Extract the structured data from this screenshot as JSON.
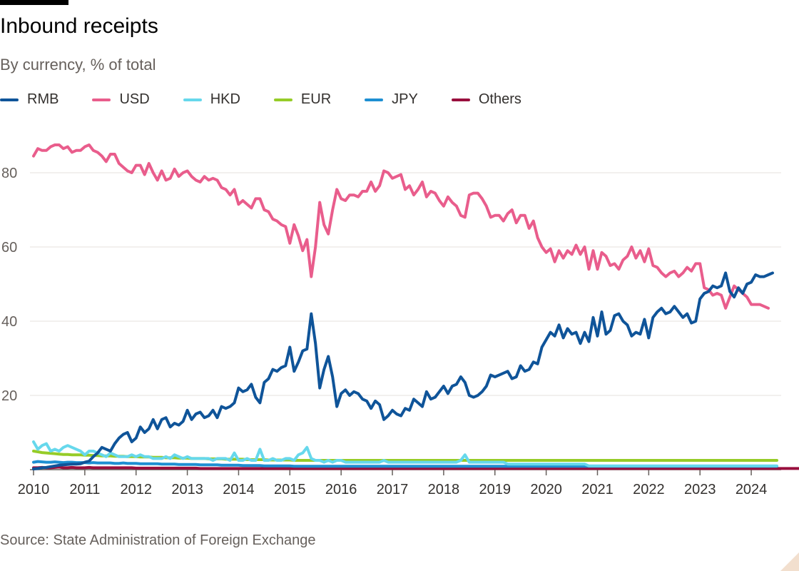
{
  "title": "Inbound receipts",
  "subtitle": "By currency, % of total",
  "source": "Source: State Administration of Foreign Exchange",
  "chart_data": {
    "type": "line",
    "title": "Inbound receipts",
    "subtitle": "By currency, % of total",
    "xlabel": "",
    "ylabel": "",
    "x_start": 2010.0,
    "x_step": 0.0833333,
    "xlim": [
      2010,
      2024.5
    ],
    "ylim": [
      0,
      90
    ],
    "yticks": [
      20,
      40,
      60,
      80
    ],
    "xticks": [
      "2010",
      "2011",
      "2012",
      "2013",
      "2014",
      "2015",
      "2016",
      "2017",
      "2018",
      "2019",
      "2020",
      "2021",
      "2022",
      "2023",
      "2024"
    ],
    "grid": "horizontal",
    "legend_position": "top-left",
    "series": [
      {
        "name": "RMB",
        "color": "#0f5499",
        "values": [
          0.2,
          0.3,
          0.5,
          0.6,
          0.8,
          1.0,
          1.2,
          1.3,
          1.4,
          1.5,
          1.5,
          1.6,
          2.0,
          2.3,
          3.5,
          4.5,
          6.0,
          5.5,
          5.0,
          7.0,
          8.5,
          9.5,
          10.0,
          7.5,
          8.5,
          11.5,
          10.0,
          11.0,
          13.5,
          11.0,
          13.5,
          14.0,
          11.5,
          12.5,
          12.0,
          13.0,
          16.0,
          13.5,
          15.0,
          15.5,
          14.0,
          14.5,
          16.0,
          14.0,
          17.0,
          16.5,
          17.0,
          18.0,
          22.0,
          21.0,
          21.5,
          23.0,
          19.5,
          18.0,
          23.5,
          24.5,
          27.0,
          26.5,
          27.5,
          28.0,
          33.0,
          26.5,
          29.0,
          32.0,
          32.5,
          42.0,
          34.0,
          22.0,
          27.0,
          30.5,
          25.0,
          17.0,
          20.5,
          21.5,
          20.0,
          21.0,
          20.5,
          19.0,
          18.5,
          16.5,
          18.5,
          17.5,
          13.5,
          14.5,
          16.0,
          15.0,
          14.5,
          16.5,
          16.0,
          19.0,
          18.0,
          17.0,
          21.0,
          19.0,
          19.5,
          21.0,
          22.5,
          20.5,
          22.5,
          23.0,
          25.0,
          23.5,
          20.0,
          19.5,
          20.0,
          21.0,
          22.5,
          25.5,
          25.0,
          25.5,
          26.0,
          26.5,
          24.5,
          25.0,
          28.0,
          26.5,
          27.0,
          29.0,
          28.5,
          33.0,
          35.0,
          37.0,
          36.0,
          39.0,
          35.5,
          38.0,
          36.5,
          37.0,
          34.0,
          37.0,
          34.5,
          41.0,
          36.0,
          42.5,
          36.5,
          37.5,
          41.5,
          42.0,
          40.0,
          39.0,
          36.0,
          37.0,
          36.5,
          40.5,
          35.5,
          41.0,
          42.5,
          43.5,
          42.0,
          42.5,
          44.0,
          42.5,
          41.0,
          42.0,
          39.5,
          40.0,
          46.0,
          47.5,
          48.0,
          49.5,
          49.0,
          49.5,
          53.0,
          48.0,
          46.5,
          49.0,
          47.5,
          50.0,
          50.5,
          52.5,
          52.0,
          52.0,
          52.5,
          53.0
        ]
      },
      {
        "name": "USD",
        "color": "#e95d8c",
        "values": [
          84.5,
          86.5,
          86.0,
          86.0,
          87.0,
          87.5,
          87.5,
          86.5,
          87.0,
          85.5,
          86.0,
          86.0,
          87.0,
          87.5,
          86.0,
          85.5,
          84.5,
          83.0,
          85.0,
          85.0,
          82.5,
          81.5,
          80.5,
          80.0,
          82.0,
          82.0,
          79.5,
          82.5,
          80.0,
          78.0,
          80.5,
          78.0,
          78.5,
          81.0,
          79.0,
          80.0,
          80.5,
          79.0,
          78.0,
          77.5,
          79.0,
          78.0,
          78.5,
          78.0,
          76.0,
          75.5,
          74.0,
          75.5,
          71.5,
          72.5,
          71.5,
          70.5,
          73.0,
          73.0,
          70.0,
          69.5,
          67.5,
          67.0,
          66.0,
          65.5,
          61.0,
          66.0,
          63.0,
          59.0,
          62.0,
          52.0,
          60.0,
          72.0,
          66.0,
          63.5,
          70.0,
          75.5,
          73.0,
          72.5,
          74.0,
          74.0,
          73.5,
          75.0,
          75.0,
          77.5,
          75.0,
          76.5,
          80.5,
          80.0,
          78.5,
          79.0,
          79.5,
          75.5,
          76.5,
          74.0,
          75.5,
          77.5,
          73.5,
          75.0,
          74.5,
          72.5,
          71.0,
          73.5,
          72.0,
          71.0,
          68.5,
          68.0,
          74.0,
          74.5,
          74.5,
          73.0,
          71.0,
          68.0,
          68.5,
          68.5,
          67.0,
          69.0,
          70.0,
          66.5,
          68.5,
          68.5,
          65.0,
          67.0,
          62.5,
          60.0,
          58.5,
          59.5,
          56.0,
          59.0,
          57.0,
          59.0,
          58.0,
          60.5,
          58.0,
          60.0,
          54.0,
          59.0,
          54.0,
          58.5,
          57.5,
          55.0,
          55.5,
          54.0,
          56.5,
          57.5,
          60.0,
          57.0,
          59.0,
          56.0,
          59.5,
          55.0,
          54.5,
          53.0,
          52.0,
          53.0,
          53.5,
          52.0,
          53.0,
          54.5,
          53.5,
          55.5,
          55.5,
          49.0,
          48.5,
          47.0,
          47.5,
          47.0,
          43.5,
          46.5,
          49.5,
          48.5,
          47.5,
          46.5,
          44.5,
          44.5,
          44.5,
          44.0,
          43.5
        ]
      },
      {
        "name": "HKD",
        "color": "#66d8ec",
        "values": [
          7.5,
          5.5,
          6.5,
          7.0,
          5.0,
          5.5,
          5.0,
          6.0,
          6.5,
          6.0,
          5.5,
          5.0,
          4.0,
          5.0,
          5.0,
          4.5,
          4.0,
          3.5,
          4.5,
          4.0,
          3.5,
          3.5,
          3.5,
          4.0,
          3.5,
          4.0,
          3.5,
          3.5,
          3.0,
          3.0,
          3.0,
          3.5,
          3.0,
          4.0,
          3.5,
          3.0,
          3.5,
          3.0,
          3.0,
          3.0,
          3.0,
          3.0,
          2.5,
          3.0,
          3.0,
          3.0,
          2.5,
          4.5,
          2.5,
          2.5,
          3.0,
          2.5,
          2.5,
          5.5,
          2.5,
          2.5,
          3.0,
          2.5,
          2.5,
          3.0,
          3.0,
          2.5,
          4.0,
          4.5,
          6.0,
          3.0,
          2.5,
          2.5,
          2.0,
          2.5,
          2.0,
          2.5,
          2.5,
          2.0,
          2.0,
          2.0,
          2.0,
          2.0,
          2.0,
          2.0,
          2.0,
          2.0,
          2.5,
          2.0,
          2.0,
          2.0,
          2.0,
          2.0,
          2.0,
          2.0,
          2.0,
          2.0,
          2.0,
          2.0,
          2.0,
          2.0,
          2.0,
          2.0,
          2.0,
          2.0,
          2.5,
          4.0,
          2.0,
          2.0,
          2.0,
          2.0,
          2.0,
          2.0,
          2.0,
          2.0,
          2.0,
          1.5,
          1.5,
          1.5,
          1.5,
          1.5,
          1.5,
          1.5,
          1.5,
          1.5,
          1.5,
          1.5,
          1.5,
          1.5,
          1.5,
          1.5,
          1.5,
          1.5,
          1.5,
          1.5,
          1.0,
          1.0,
          1.0,
          1.0,
          1.0,
          1.0,
          1.0,
          1.0,
          1.0,
          1.0,
          1.0,
          1.0,
          1.0,
          1.0,
          1.0,
          1.0,
          1.0,
          1.0,
          1.0,
          1.0,
          1.0,
          1.0,
          1.0,
          1.0,
          1.0,
          1.0,
          1.0,
          1.0,
          1.0,
          1.0,
          1.0,
          1.0,
          1.0,
          1.0,
          1.0,
          1.0,
          1.0,
          1.0,
          1.0,
          1.0,
          1.0,
          1.0,
          1.0,
          1.0,
          1.0
        ]
      },
      {
        "name": "EUR",
        "color": "#96cc28",
        "values": [
          5.0,
          4.8,
          4.6,
          4.5,
          4.4,
          4.3,
          4.2,
          4.1,
          4.1,
          4.0,
          4.0,
          4.0,
          3.9,
          3.9,
          3.8,
          3.8,
          3.7,
          3.7,
          3.7,
          3.6,
          3.6,
          3.6,
          3.5,
          3.5,
          3.5,
          3.4,
          3.4,
          3.4,
          3.3,
          3.3,
          3.3,
          3.2,
          3.2,
          3.2,
          3.1,
          3.1,
          3.1,
          3.0,
          3.0,
          3.0,
          3.0,
          2.9,
          2.9,
          2.9,
          2.9,
          2.8,
          2.8,
          2.8,
          2.8,
          2.8,
          2.7,
          2.7,
          2.7,
          2.7,
          2.7,
          2.6,
          2.6,
          2.6,
          2.6,
          2.6,
          2.6,
          2.5,
          2.5,
          2.5,
          2.5,
          2.5,
          2.5,
          2.5,
          2.5,
          2.5,
          2.5,
          2.5,
          2.5,
          2.5,
          2.5,
          2.5,
          2.5,
          2.5,
          2.5,
          2.5,
          2.5,
          2.5,
          2.5,
          2.5,
          2.5,
          2.5,
          2.5,
          2.5,
          2.5,
          2.5,
          2.5,
          2.5,
          2.5,
          2.5,
          2.5,
          2.5,
          2.5,
          2.5,
          2.5,
          2.5,
          2.5,
          2.5,
          2.5,
          2.5,
          2.5,
          2.5,
          2.5,
          2.5,
          2.5,
          2.5,
          2.5,
          2.5,
          2.5,
          2.5,
          2.5,
          2.5,
          2.5,
          2.5,
          2.5,
          2.5,
          2.5,
          2.5,
          2.5,
          2.5,
          2.5,
          2.5,
          2.5,
          2.5,
          2.5,
          2.5,
          2.5,
          2.5,
          2.5,
          2.5,
          2.5,
          2.5,
          2.5,
          2.5,
          2.5,
          2.5,
          2.5,
          2.5,
          2.5,
          2.5,
          2.5,
          2.5,
          2.5,
          2.5,
          2.5,
          2.5,
          2.5,
          2.5,
          2.5,
          2.5,
          2.5,
          2.5,
          2.5,
          2.5,
          2.5,
          2.5,
          2.5,
          2.5,
          2.5,
          2.5,
          2.5,
          2.5,
          2.5,
          2.5,
          2.5,
          2.5,
          2.5,
          2.5,
          2.5,
          2.5,
          2.5
        ]
      },
      {
        "name": "JPY",
        "color": "#1e8fd2",
        "values": [
          2.0,
          2.2,
          2.1,
          2.0,
          2.0,
          2.1,
          2.0,
          1.9,
          2.0,
          2.0,
          1.9,
          1.9,
          1.9,
          1.8,
          1.9,
          1.8,
          1.8,
          1.8,
          1.8,
          1.7,
          1.7,
          1.8,
          1.7,
          1.7,
          1.7,
          1.6,
          1.6,
          1.6,
          1.6,
          1.6,
          1.5,
          1.5,
          1.5,
          1.5,
          1.4,
          1.4,
          1.4,
          1.4,
          1.4,
          1.3,
          1.3,
          1.3,
          1.3,
          1.3,
          1.2,
          1.2,
          1.2,
          1.2,
          1.2,
          1.1,
          1.1,
          1.1,
          1.1,
          1.1,
          1.0,
          1.0,
          1.0,
          1.0,
          1.0,
          1.0,
          1.0,
          0.9,
          0.9,
          0.9,
          0.9,
          0.9,
          0.9,
          0.9,
          0.9,
          0.9,
          0.9,
          0.9,
          0.9,
          0.9,
          0.9,
          0.9,
          0.9,
          0.9,
          0.9,
          0.9,
          0.9,
          0.9,
          0.9,
          0.9,
          0.9,
          0.9,
          0.9,
          0.9,
          0.9,
          0.9,
          0.9,
          0.9,
          0.9,
          0.9,
          0.9,
          0.9,
          0.9,
          0.9,
          0.9,
          0.9,
          0.9,
          0.9,
          0.9,
          0.9,
          0.9,
          0.9,
          0.9,
          0.9,
          0.9,
          0.9,
          0.9,
          0.9,
          0.9,
          0.9,
          0.9,
          0.9,
          0.9,
          0.9,
          0.9,
          0.9,
          0.9,
          0.9,
          0.9,
          0.9,
          0.9,
          0.9,
          0.9,
          0.9,
          0.9,
          0.9,
          0.9,
          0.9,
          0.9,
          0.9,
          0.9,
          0.9,
          0.9,
          0.9,
          0.9,
          0.9,
          0.9,
          0.9,
          0.9,
          0.9,
          0.9,
          0.9,
          0.9,
          0.9,
          0.9,
          0.9,
          0.9,
          0.9,
          0.9,
          0.9,
          0.9,
          0.9,
          0.9,
          0.9,
          0.9,
          0.9,
          0.9,
          0.9,
          0.9,
          0.9,
          0.9,
          0.9,
          0.9,
          0.9,
          0.9,
          0.9,
          0.9,
          0.9,
          0.9,
          0.9,
          0.9
        ]
      },
      {
        "name": "Others",
        "color": "#990f3d",
        "values": [
          0.5,
          0.5,
          0.6,
          0.5,
          0.5,
          0.6,
          0.7,
          0.5,
          0.5,
          0.6,
          0.5,
          0.5,
          0.5,
          0.6,
          0.5,
          0.5,
          0.5,
          0.5,
          0.5,
          0.5,
          0.5,
          0.5,
          0.5,
          0.5,
          0.4,
          0.4,
          0.4,
          0.4,
          0.4,
          0.4,
          0.4,
          0.4,
          0.4,
          0.4,
          0.4,
          0.4,
          0.4,
          0.4,
          0.4,
          0.3,
          0.3,
          0.3,
          0.3,
          0.3,
          0.3,
          0.3,
          0.3,
          0.3,
          0.3,
          0.3,
          0.3,
          0.3,
          0.3,
          0.3,
          0.3,
          0.3,
          0.3,
          0.3,
          0.3,
          0.3,
          0.3,
          0.3,
          0.3,
          0.3,
          0.3,
          0.3,
          0.3,
          0.3,
          0.3,
          0.3,
          0.3,
          0.3,
          0.3,
          0.3,
          0.3,
          0.3,
          0.3,
          0.3,
          0.3,
          0.3,
          0.3,
          0.3,
          0.3,
          0.3,
          0.3,
          0.3,
          0.3,
          0.3,
          0.3,
          0.3,
          0.3,
          0.3,
          0.3,
          0.3,
          0.3,
          0.3,
          0.3,
          0.3,
          0.3,
          0.3,
          0.3,
          0.3,
          0.3,
          0.3,
          0.3,
          0.3,
          0.3,
          0.3,
          0.3,
          0.3,
          0.3,
          0.3,
          0.3,
          0.3,
          0.3,
          0.3,
          0.3,
          0.3,
          0.3,
          0.3,
          0.3,
          0.3,
          0.3,
          0.3,
          0.3,
          0.3,
          0.3,
          0.3,
          0.3,
          0.3,
          0.3,
          0.3,
          0.3,
          0.3,
          0.3,
          0.3,
          0.3,
          0.3,
          0.3,
          0.3,
          0.3,
          0.3,
          0.3,
          0.3,
          0.3,
          0.3,
          0.3,
          0.3,
          0.3,
          0.3,
          0.3,
          0.3,
          0.3,
          0.3,
          0.3,
          0.3,
          0.3,
          0.3,
          0.3,
          0.3,
          0.3,
          0.3,
          0.3,
          0.3,
          0.3,
          0.3,
          0.3,
          0.3,
          0.3,
          0.3,
          0.3,
          0.3,
          0.3,
          0.3,
          0.3,
          0.3,
          0.3,
          0.3,
          0.3,
          0.3,
          0.3,
          0.3,
          0.3,
          0.3,
          0.3
        ]
      }
    ]
  }
}
